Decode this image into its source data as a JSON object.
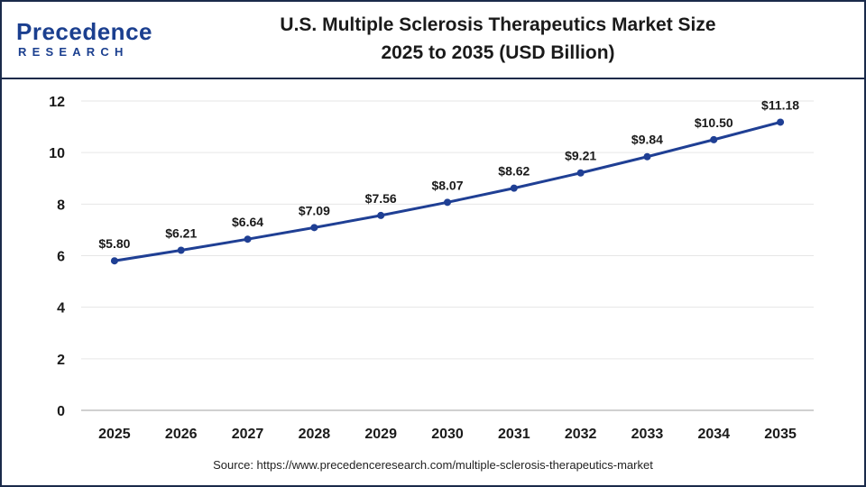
{
  "brand": {
    "name": "Precedence",
    "sub": "RESEARCH",
    "color": "#1b3f8f"
  },
  "title": {
    "line1": "U.S. Multiple Sclerosis Therapeutics Market Size",
    "line2": "2025 to 2035 (USD Billion)"
  },
  "source": "Source: https://www.precedenceresearch.com/multiple-sclerosis-therapeutics-market",
  "chart_data": {
    "type": "line",
    "categories": [
      "2025",
      "2026",
      "2027",
      "2028",
      "2029",
      "2030",
      "2031",
      "2032",
      "2033",
      "2034",
      "2035"
    ],
    "series": [
      {
        "values": [
          5.8,
          6.21,
          6.64,
          7.09,
          7.56,
          8.07,
          8.62,
          9.21,
          9.84,
          10.5,
          11.18
        ],
        "labels": [
          "$5.80",
          "$6.21",
          "$6.64",
          "$7.09",
          "$7.56",
          "$8.07",
          "$8.62",
          "$9.21",
          "$9.84",
          "$10.50",
          "$11.18"
        ],
        "color": "#1f3f94"
      }
    ],
    "yticks": [
      "0",
      "2",
      "4",
      "6",
      "8",
      "10",
      "12"
    ],
    "ylim": [
      0,
      12
    ],
    "grid": true,
    "legend": "none"
  }
}
